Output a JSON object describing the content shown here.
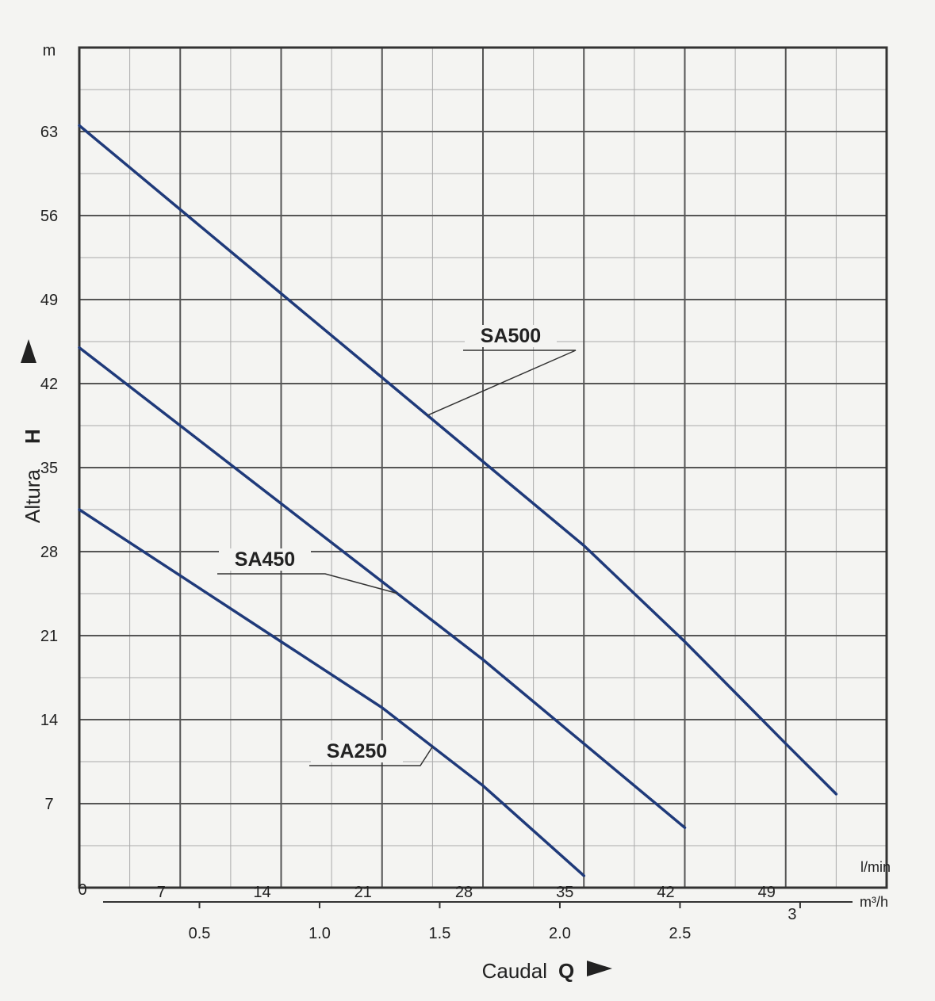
{
  "chart_data": {
    "type": "line",
    "title": "",
    "y_axis": {
      "title": "Altura",
      "symbol": "H",
      "unit": "m",
      "ticks": [
        7,
        14,
        21,
        28,
        35,
        42,
        49,
        56,
        63
      ],
      "range": [
        0,
        70
      ]
    },
    "x_axis": {
      "title": "Caudal",
      "symbol": "Q",
      "origin_label": "0",
      "primary_unit": "l/min",
      "primary_ticks": [
        7,
        14,
        21,
        28,
        35,
        42,
        49
      ],
      "primary_range": [
        0,
        56
      ],
      "secondary_unit": "m³/h",
      "secondary_tick_labels": [
        "0.5",
        "1.0",
        "1.5",
        "2.0",
        "2.5",
        "3"
      ],
      "secondary_ticks": [
        0.5,
        1.0,
        1.5,
        2.0,
        2.5,
        3.0
      ]
    },
    "series": [
      {
        "name": "SA500",
        "color": "#1f3a7a",
        "x": [
          0,
          7,
          14,
          21,
          28,
          35,
          42,
          49,
          52.5
        ],
        "y": [
          63.5,
          56.5,
          49.5,
          42.5,
          35.5,
          28.5,
          20.5,
          12,
          7.8
        ]
      },
      {
        "name": "SA450",
        "color": "#1f3a7a",
        "x": [
          0,
          7,
          14,
          21,
          28,
          35,
          42
        ],
        "y": [
          45,
          38.5,
          32,
          25.5,
          19,
          12,
          5
        ]
      },
      {
        "name": "SA250",
        "color": "#1f3a7a",
        "x": [
          0,
          7,
          14,
          21,
          28,
          35
        ],
        "y": [
          31.5,
          26,
          20.5,
          15,
          8.5,
          1
        ]
      }
    ]
  }
}
